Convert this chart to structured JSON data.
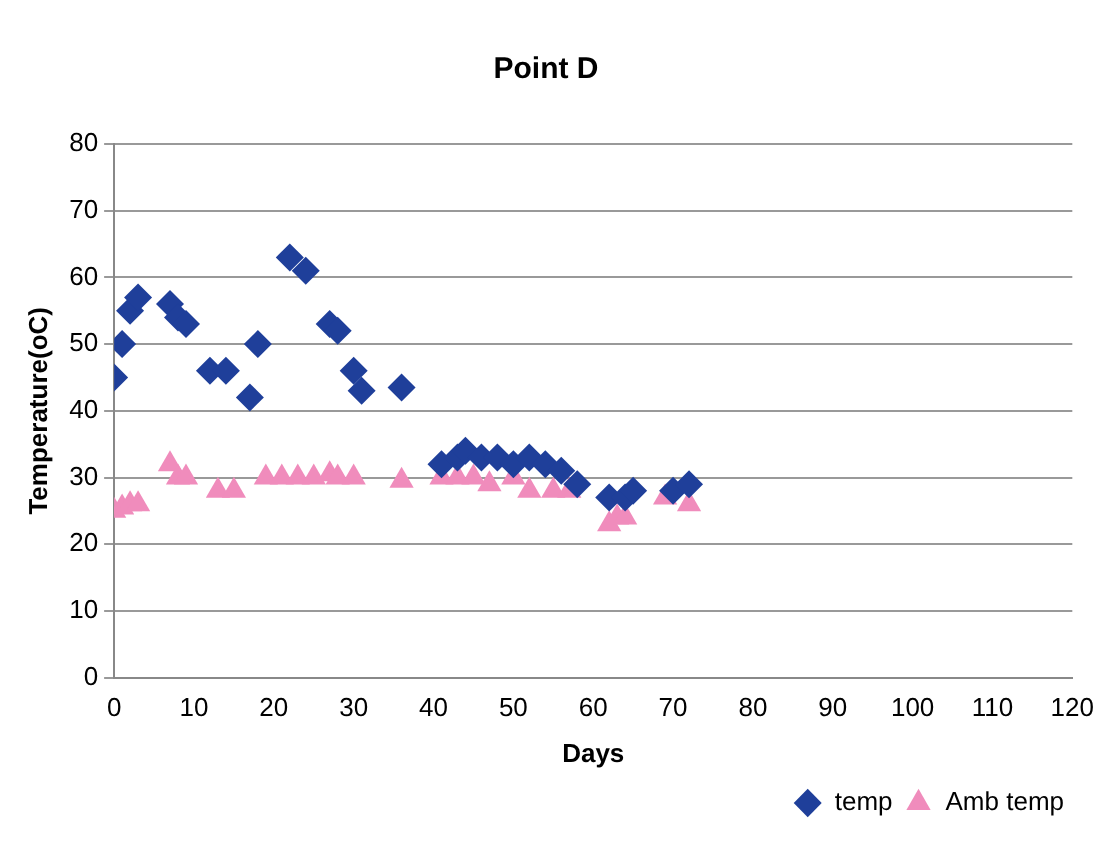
{
  "chart_data": {
    "type": "scatter",
    "title": "Point D",
    "xlabel": "Days",
    "ylabel": "Temperature(oC)",
    "xlim": [
      0,
      120
    ],
    "xticks": [
      0,
      10,
      20,
      30,
      40,
      50,
      60,
      70,
      80,
      90,
      100,
      110,
      120
    ],
    "ylim": [
      0,
      80
    ],
    "yticks": [
      0,
      10,
      20,
      30,
      40,
      50,
      60,
      70,
      80
    ],
    "grid": "y",
    "legend": "bottom right",
    "series": [
      {
        "name": "temp",
        "color": "#1f3f9a",
        "marker": "diamond",
        "x": [
          0,
          1,
          2,
          3,
          7,
          8,
          9,
          12,
          14,
          17,
          18,
          22,
          24,
          27,
          28,
          30,
          31,
          36,
          41,
          43,
          44,
          46,
          48,
          50,
          52,
          54,
          56,
          58,
          62,
          64,
          65,
          70,
          72
        ],
        "values": [
          45,
          50,
          55,
          57,
          56,
          54,
          53,
          46,
          46,
          42,
          50,
          63,
          61,
          53,
          52,
          46,
          43,
          43.5,
          32,
          33,
          34,
          33,
          33,
          32,
          33,
          32,
          31,
          29,
          27,
          27,
          28,
          28,
          29
        ]
      },
      {
        "name": "Amb temp",
        "color": "#f08cbc",
        "marker": "triangle",
        "x": [
          0,
          1,
          2,
          3,
          7,
          8,
          9,
          13,
          15,
          19,
          21,
          23,
          25,
          27,
          28,
          30,
          36,
          41,
          43,
          45,
          47,
          49,
          50,
          52,
          55,
          57,
          62,
          63,
          64,
          69,
          72
        ],
        "values": [
          25,
          25.5,
          26,
          26,
          32,
          30,
          30,
          28,
          28,
          30,
          30,
          30,
          30,
          30.5,
          30,
          30,
          29.5,
          30,
          30,
          30,
          29,
          null,
          30,
          28,
          28,
          28,
          23,
          24,
          24,
          27,
          26
        ]
      }
    ]
  }
}
